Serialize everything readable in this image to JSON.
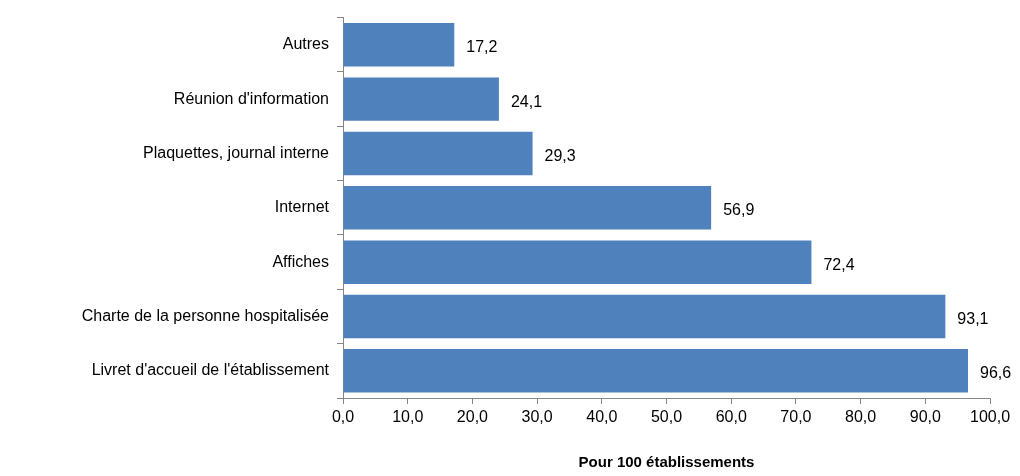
{
  "chart_data": {
    "type": "bar",
    "orientation": "horizontal",
    "xlabel": "Pour 100 établissements",
    "categories": [
      "Autres",
      "Réunion d'information",
      "Plaquettes, journal interne",
      "Internet",
      "Affiches",
      "Charte de la personne hospitalisée",
      "Livret d'accueil de l'établissement"
    ],
    "values": [
      17.2,
      24.1,
      29.3,
      56.9,
      72.4,
      93.1,
      96.6
    ],
    "value_labels": [
      "17,2",
      "24,1",
      "29,3",
      "56,9",
      "72,4",
      "93,1",
      "96,6"
    ],
    "color": "#4f81bd",
    "xlim": [
      0,
      100
    ],
    "xticks": [
      {
        "value": 0,
        "label": "0,0"
      },
      {
        "value": 10,
        "label": "10,0"
      },
      {
        "value": 20,
        "label": "20,0"
      },
      {
        "value": 30,
        "label": "30,0"
      },
      {
        "value": 40,
        "label": "40,0"
      },
      {
        "value": 50,
        "label": "50,0"
      },
      {
        "value": 60,
        "label": "60,0"
      },
      {
        "value": 70,
        "label": "70,0"
      },
      {
        "value": 80,
        "label": "80,0"
      },
      {
        "value": 90,
        "label": "90,0"
      },
      {
        "value": 100,
        "label": "100,0"
      }
    ],
    "grid": false,
    "legend": false
  }
}
